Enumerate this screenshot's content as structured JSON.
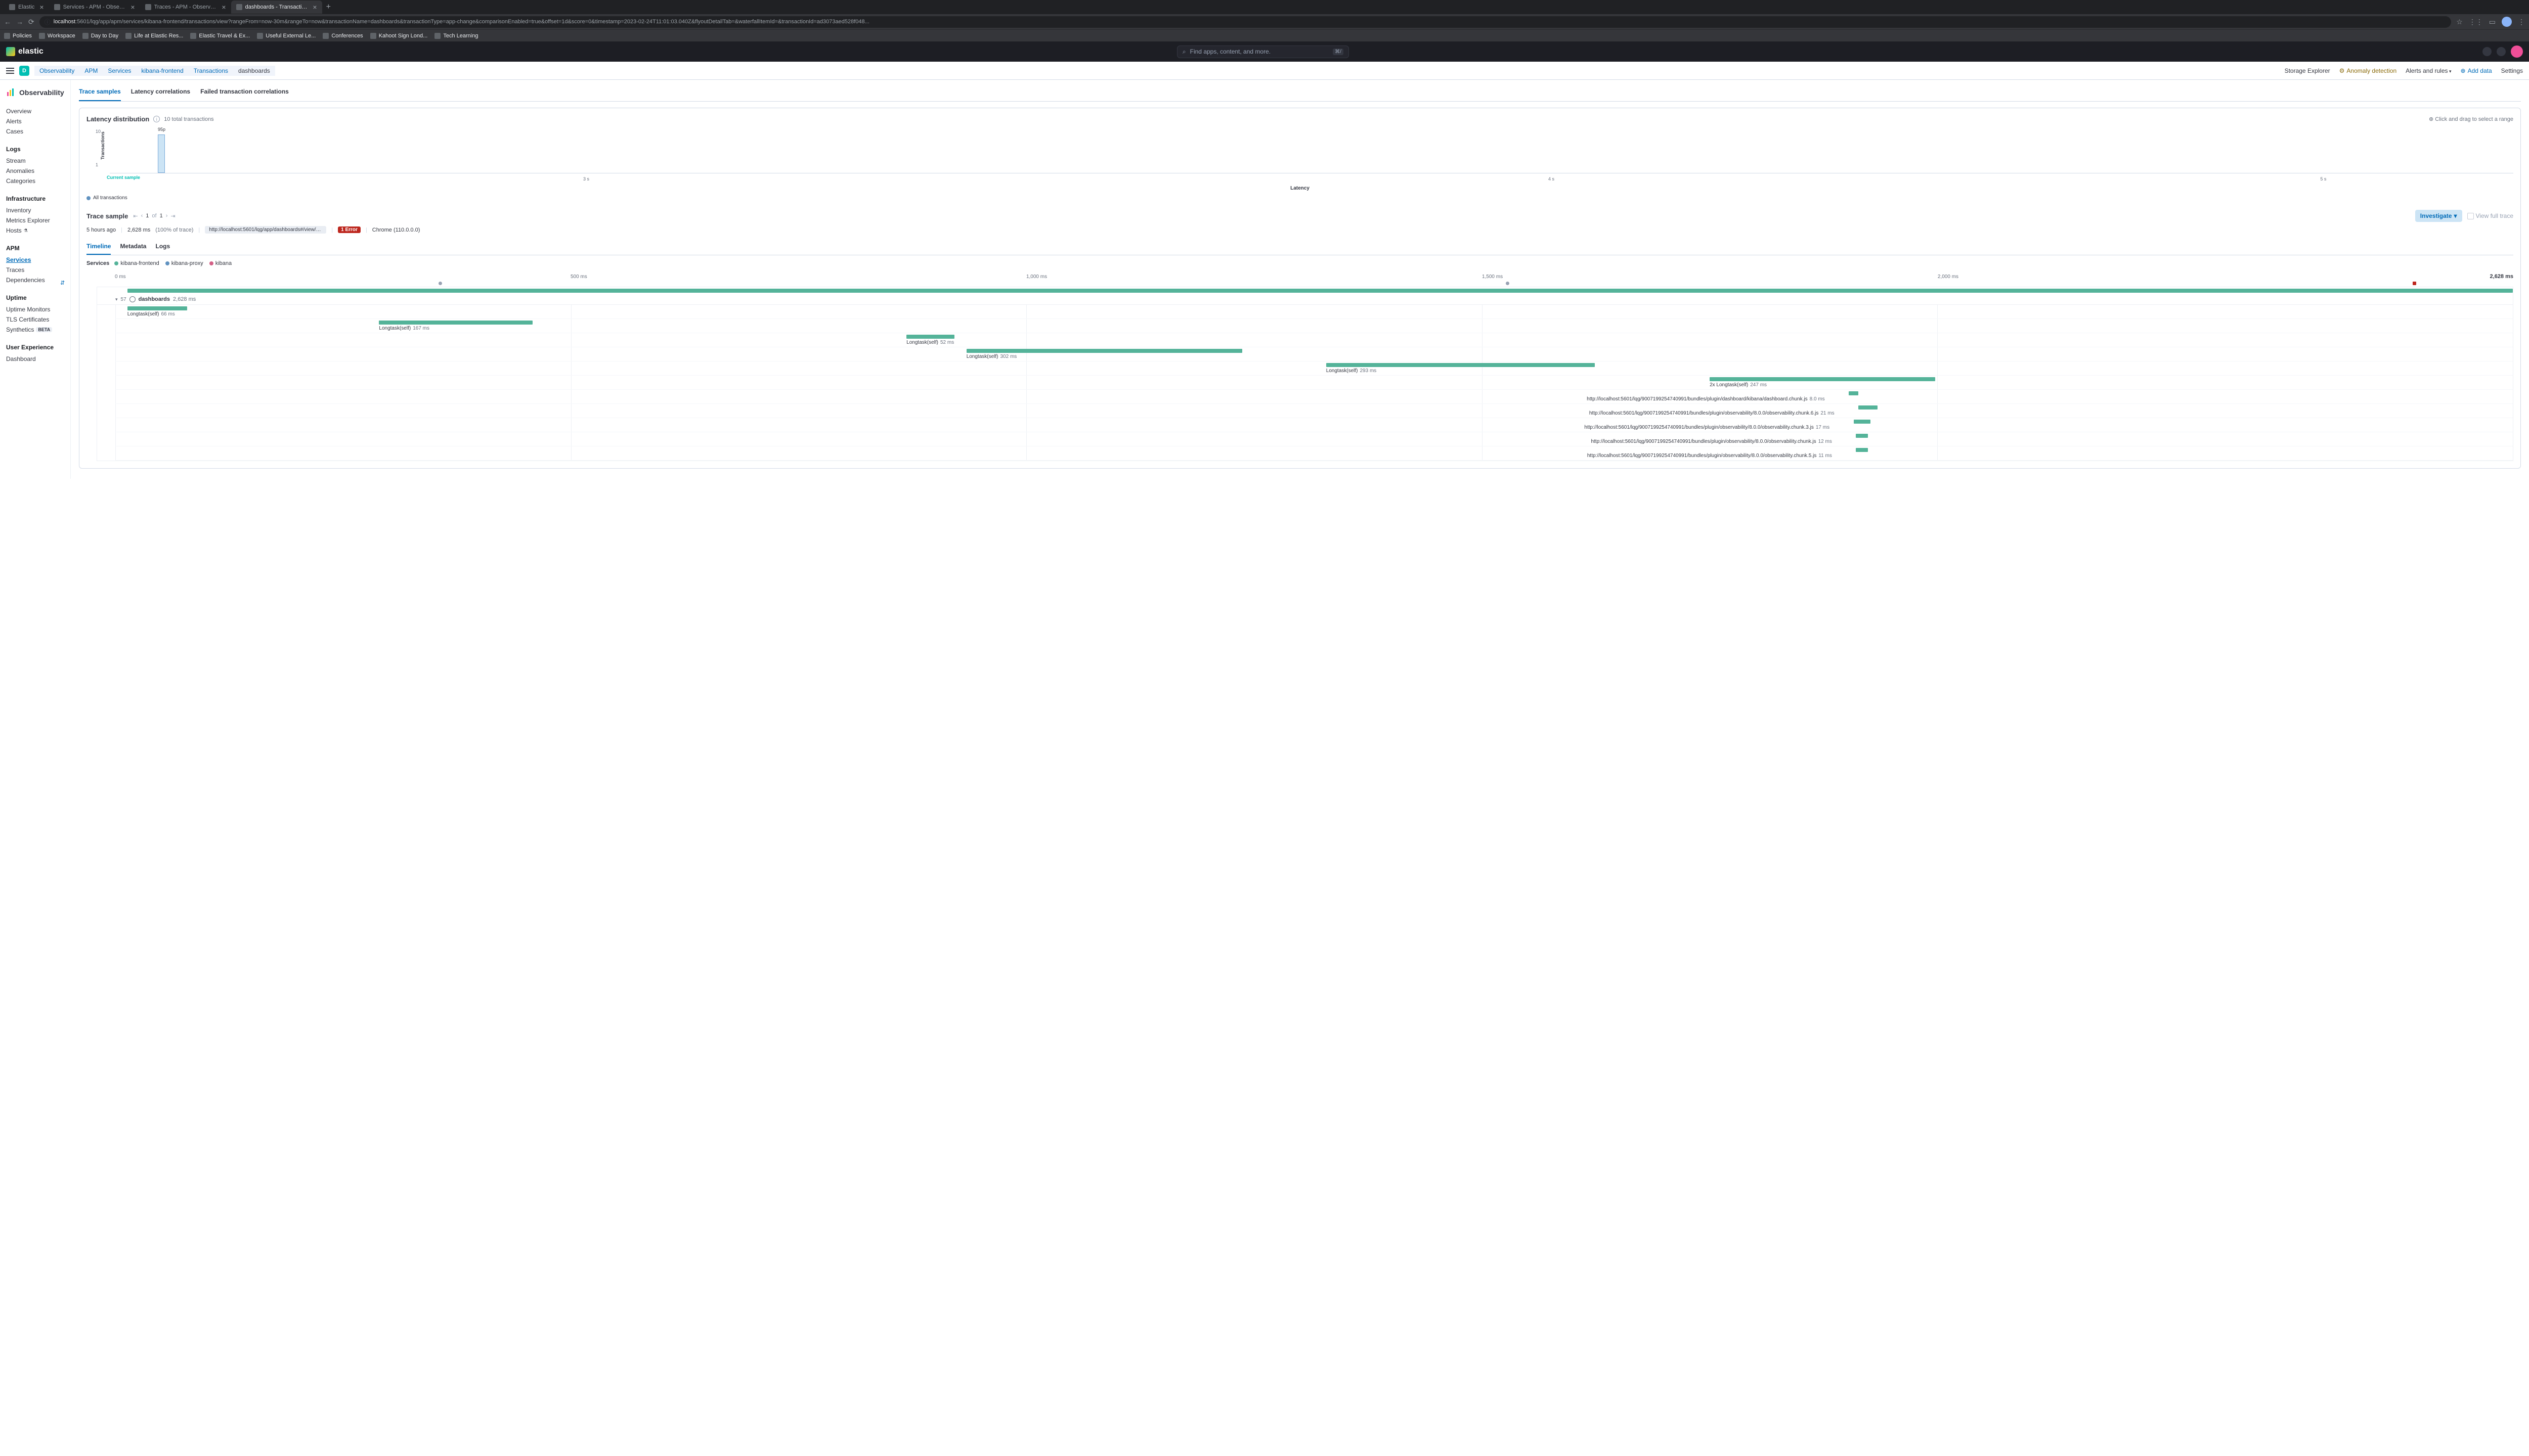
{
  "browser": {
    "tabs": [
      {
        "title": "Elastic",
        "active": false
      },
      {
        "title": "Services - APM - Observabilit",
        "active": false
      },
      {
        "title": "Traces - APM - Observability",
        "active": false
      },
      {
        "title": "dashboards - Transactions - k",
        "active": true
      }
    ],
    "url_host": "localhost",
    "url_path": ":5601/lqg/app/apm/services/kibana-frontend/transactions/view?rangeFrom=now-30m&rangeTo=now&transactionName=dashboards&transactionType=app-change&comparisonEnabled=true&offset=1d&score=0&timestamp=2023-02-24T11:01:03.040Z&flyoutDetailTab=&waterfallItemId=&transactionId=ad3073aed528f048...",
    "bookmarks": [
      "Policies",
      "Workspace",
      "Day to Day",
      "Life at Elastic Res...",
      "Elastic Travel & Ex...",
      "Useful External Le...",
      "Conferences",
      "Kahoot Sign Lond...",
      "Tech Learning"
    ]
  },
  "header": {
    "logo_text": "elastic",
    "search_placeholder": "Find apps, content, and more.",
    "search_kbd": "⌘/"
  },
  "subheader": {
    "badge": "D",
    "breadcrumbs": [
      "Observability",
      "APM",
      "Services",
      "kibana-frontend",
      "Transactions",
      "dashboards"
    ],
    "links": {
      "storage": "Storage Explorer",
      "anomaly": "Anomaly detection",
      "alerts": "Alerts and rules",
      "add_data": "Add data",
      "settings": "Settings"
    }
  },
  "sidebar": {
    "title": "Observability",
    "sections": [
      {
        "items": [
          "Overview",
          "Alerts",
          "Cases"
        ]
      },
      {
        "heading": "Logs",
        "items": [
          "Stream",
          "Anomalies",
          "Categories"
        ]
      },
      {
        "heading": "Infrastructure",
        "items": [
          "Inventory",
          "Metrics Explorer",
          "Hosts"
        ]
      },
      {
        "heading": "APM",
        "items": [
          "Services",
          "Traces",
          "Dependencies"
        ],
        "active": "Services"
      },
      {
        "heading": "Uptime",
        "items": [
          "Uptime Monitors",
          "TLS Certificates",
          "Synthetics"
        ],
        "beta": "Synthetics"
      },
      {
        "heading": "User Experience",
        "items": [
          "Dashboard"
        ]
      }
    ],
    "beta_label": "BETA"
  },
  "tabs": {
    "items": [
      "Trace samples",
      "Latency correlations",
      "Failed transaction correlations"
    ],
    "active": "Trace samples"
  },
  "latency_panel": {
    "title": "Latency distribution",
    "subtitle": "10 total transactions",
    "drag_hint": "Click and drag to select a range",
    "y_label": "Transactions",
    "y_ticks": [
      1,
      10
    ],
    "p95_label": "95p",
    "current_sample": "Current sample",
    "x_ticks": [
      "3 s",
      "4 s",
      "5 s"
    ],
    "x_label": "Latency",
    "legend": "All transactions",
    "bar_color": "#cce4f5",
    "bar_border": "#79aad9",
    "bar_left_pct": 2,
    "bar_height_pct": 85
  },
  "trace_sample": {
    "title": "Trace sample",
    "page_current": "1",
    "page_of": "of",
    "page_total": "1",
    "investigate": "Investigate",
    "view_full": "View full trace",
    "time_ago": "5 hours ago",
    "duration": "2,628 ms",
    "pct": "(100% of trace)",
    "url": "http://localhost:5601/lqg/app/dashboards#/view/edf84fe0-e1a0...",
    "error_badge": "1 Error",
    "browser": "Chrome (110.0.0.0)"
  },
  "sub_tabs": {
    "items": [
      "Timeline",
      "Metadata",
      "Logs"
    ],
    "active": "Timeline"
  },
  "services": {
    "label": "Services",
    "items": [
      {
        "name": "kibana-frontend",
        "color": "#54b399"
      },
      {
        "name": "kibana-proxy",
        "color": "#6092c0"
      },
      {
        "name": "kibana",
        "color": "#d36086"
      }
    ]
  },
  "waterfall": {
    "ticks": [
      "0 ms",
      "500 ms",
      "1,000 ms",
      "1,500 ms",
      "2,000 ms"
    ],
    "tick_positions_pct": [
      0,
      19,
      38,
      57,
      76
    ],
    "total": "2,628 ms",
    "markers": [
      {
        "left_pct": 13.5,
        "type": "dot"
      },
      {
        "left_pct": 58,
        "type": "dot"
      },
      {
        "left_pct": 95.8,
        "type": "red"
      }
    ],
    "root": {
      "label": "dashboards",
      "duration": "2,628 ms",
      "count": "57"
    },
    "root_bar": {
      "left_pct": 0.5,
      "width_pct": 99.5,
      "color": "#54b399"
    },
    "spans": [
      {
        "label": "Longtask(self)",
        "duration": "66 ms",
        "left_pct": 0.5,
        "width_pct": 2.5,
        "color": "#54b399",
        "label_left_pct": 0.5
      },
      {
        "label": "Longtask(self)",
        "duration": "167 ms",
        "left_pct": 11,
        "width_pct": 6.4,
        "color": "#54b399",
        "label_left_pct": 11
      },
      {
        "label": "Longtask(self)",
        "duration": "52 ms",
        "left_pct": 33,
        "width_pct": 2.0,
        "color": "#54b399",
        "label_left_pct": 33
      },
      {
        "label": "Longtask(self)",
        "duration": "302 ms",
        "left_pct": 35.5,
        "width_pct": 11.5,
        "color": "#54b399",
        "label_left_pct": 35.5
      },
      {
        "label": "Longtask(self)",
        "duration": "293 ms",
        "left_pct": 50.5,
        "width_pct": 11.2,
        "color": "#54b399",
        "label_left_pct": 50.5
      },
      {
        "label": "2x Longtask(self)",
        "duration": "247 ms",
        "left_pct": 66.5,
        "width_pct": 9.4,
        "color": "#54b399",
        "label_left_pct": 66.5
      },
      {
        "label": "http://localhost:5601/lqg/9007199254740991/bundles/plugin/dashboard/kibana/dashboard.chunk.js",
        "duration": "8.0 ms",
        "left_pct": 72.3,
        "width_pct": 0.4,
        "color": "#54b399",
        "label_align": "right"
      },
      {
        "label": "http://localhost:5601/lqg/9007199254740991/bundles/plugin/observability/8.0.0/observability.chunk.6.js",
        "duration": "21 ms",
        "left_pct": 72.7,
        "width_pct": 0.8,
        "color": "#54b399",
        "label_align": "right"
      },
      {
        "label": "http://localhost:5601/lqg/9007199254740991/bundles/plugin/observability/8.0.0/observability.chunk.3.js",
        "duration": "17 ms",
        "left_pct": 72.5,
        "width_pct": 0.7,
        "color": "#54b399",
        "label_align": "right"
      },
      {
        "label": "http://localhost:5601/lqg/9007199254740991/bundles/plugin/observability/8.0.0/observability.chunk.js",
        "duration": "12 ms",
        "left_pct": 72.6,
        "width_pct": 0.5,
        "color": "#54b399",
        "label_align": "right"
      },
      {
        "label": "http://localhost:5601/lqg/9007199254740991/bundles/plugin/observability/8.0.0/observability.chunk.5.js",
        "duration": "11 ms",
        "left_pct": 72.6,
        "width_pct": 0.5,
        "color": "#54b399",
        "label_align": "right"
      }
    ]
  },
  "colors": {
    "primary": "#006bb8",
    "teal": "#00bfb3",
    "border": "#d3dae6"
  }
}
